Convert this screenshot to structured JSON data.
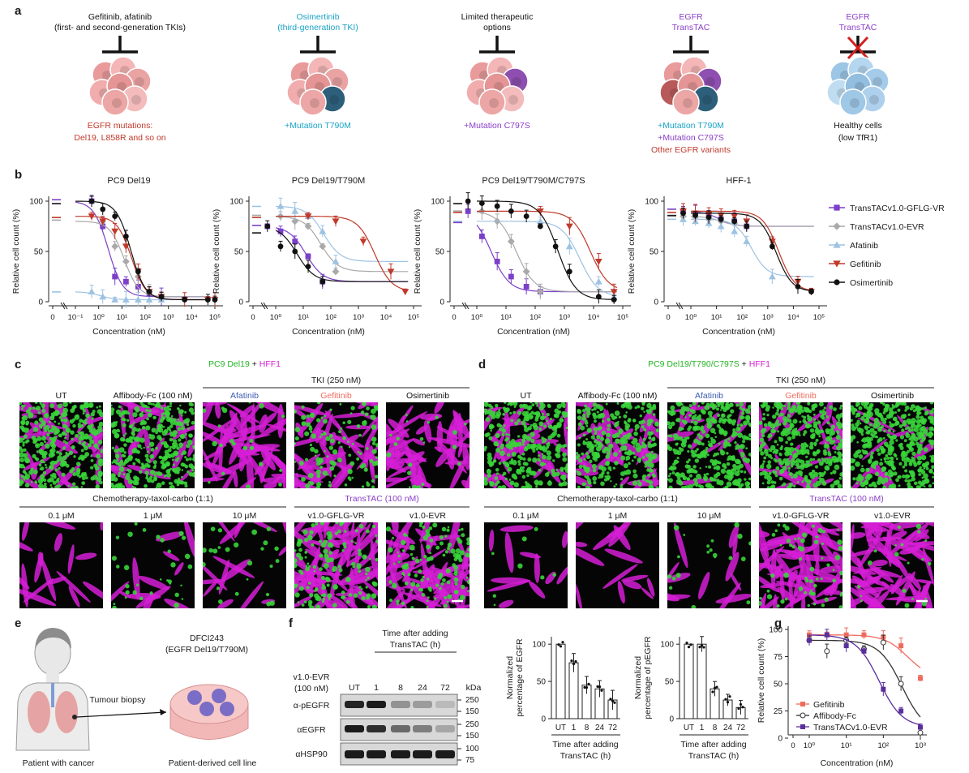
{
  "colors": {
    "purple": "#7b3fc8",
    "grey": "#a9a9a9",
    "lightblue": "#9ec3e2",
    "red": "#c0392b",
    "black": "#111111",
    "cyan": "#1aa3c6",
    "green": "#39d43a",
    "magenta": "#d61fd6",
    "salmon": "#ef6b5e"
  },
  "panel_a": {
    "label": "a",
    "columns": [
      {
        "top": [
          "Gefitinib, afatinib",
          "(first- and second-generation TKIs)"
        ],
        "top_color": "#111111",
        "bottom": [
          "EGFR mutations:",
          "Del19, L858R and so on"
        ],
        "bottom_colors": [
          "#c0392b",
          "#c0392b"
        ],
        "cell": "pink"
      },
      {
        "top": [
          "Osimertinib",
          "(third-generation TKI)"
        ],
        "top_color": "#1aa3c6",
        "bottom": [
          "+Mutation T790M"
        ],
        "bottom_colors": [
          "#1aa3c6"
        ],
        "cell": "pink-teal"
      },
      {
        "top": [
          "Limited therapeutic",
          "options"
        ],
        "top_color": "#111111",
        "bottom": [
          "+Mutation C797S"
        ],
        "bottom_colors": [
          "#8a3fc8"
        ],
        "cell": "pink-purple"
      },
      {
        "top": [
          "EGFR",
          "TransTAC"
        ],
        "top_color": "#8a3fc8",
        "bottom": [
          "+Mutation T790M",
          "+Mutation C797S",
          "Other EGFR variants"
        ],
        "bottom_colors": [
          "#1aa3c6",
          "#8a3fc8",
          "#c0392b"
        ],
        "cell": "mixed"
      },
      {
        "top": [
          "EGFR",
          "TransTAC"
        ],
        "top_color": "#8a3fc8",
        "bottom": [
          "Healthy cells",
          "(low TfR1)"
        ],
        "bottom_colors": [
          "#111111",
          "#111111"
        ],
        "cell": "blue"
      }
    ]
  },
  "panel_b": {
    "label": "b",
    "ylabel": "Relative cell count (%)",
    "xlabel": "Concentration (nM)",
    "legend": [
      "TransTACv1.0-GFLG-VR",
      "TransTACv1.0-EVR",
      "Afatinib",
      "Gefitinib",
      "Osimertinib"
    ]
  },
  "chart_data": [
    {
      "type": "scatter",
      "title": "PC9  Del19",
      "xlabel": "Concentration (nM)",
      "ylabel": "Relative cell count (%)",
      "xscale": "log",
      "xticks": [
        "0",
        "10⁻¹",
        "10⁰",
        "10¹",
        "10²",
        "10³",
        "10⁴",
        "10⁵"
      ],
      "yticks": [
        0,
        50,
        100
      ],
      "ylim": [
        0,
        100
      ],
      "series": [
        {
          "name": "TransTACv1.0-GFLG-VR",
          "x": [
            0.5,
            1.5,
            5,
            15,
            50,
            150,
            500
          ],
          "y": [
            100,
            75,
            25,
            20,
            15,
            8,
            5
          ]
        },
        {
          "name": "TransTACv1.0-EVR",
          "x": [
            1.5,
            5,
            15,
            50,
            150,
            500
          ],
          "y": [
            80,
            55,
            40,
            25,
            10,
            5
          ]
        },
        {
          "name": "Afatinib",
          "x": [
            0.5,
            1.5,
            5,
            15,
            50,
            150,
            500
          ],
          "y": [
            10,
            5,
            2,
            2,
            2,
            2,
            2
          ]
        },
        {
          "name": "Gefitinib",
          "x": [
            0.5,
            1.5,
            5,
            15,
            50,
            150,
            500,
            5000,
            50000,
            100000
          ],
          "y": [
            85,
            80,
            70,
            55,
            30,
            10,
            5,
            2,
            2,
            2
          ]
        },
        {
          "name": "Osimertinib",
          "x": [
            0.5,
            1.5,
            5,
            15,
            50,
            150,
            500,
            5000,
            50000,
            100000
          ],
          "y": [
            100,
            92,
            85,
            65,
            30,
            10,
            5,
            2,
            2,
            2
          ]
        }
      ]
    },
    {
      "type": "scatter",
      "title": "PC9 Del19/T790M",
      "xlabel": "Concentration (nM)",
      "ylabel": "Relative cell count (%)",
      "xscale": "log",
      "xticks": [
        "0",
        "10⁰",
        "10¹",
        "10²",
        "10³",
        "10⁴",
        "10⁵"
      ],
      "yticks": [
        0,
        50,
        100
      ],
      "ylim": [
        0,
        100
      ],
      "series": [
        {
          "name": "TransTACv1.0-GFLG-VR",
          "x": [
            0.5,
            1.5,
            5,
            15,
            50
          ],
          "y": [
            75,
            70,
            60,
            45,
            20
          ]
        },
        {
          "name": "TransTACv1.0-EVR",
          "x": [
            1.5,
            5,
            15,
            50,
            150
          ],
          "y": [
            85,
            80,
            75,
            55,
            30
          ]
        },
        {
          "name": "Afatinib",
          "x": [
            1.5,
            5,
            15,
            50,
            150
          ],
          "y": [
            95,
            90,
            85,
            70,
            40
          ]
        },
        {
          "name": "Gefitinib",
          "x": [
            15,
            150,
            1500,
            15000,
            50000
          ],
          "y": [
            85,
            80,
            60,
            30,
            10
          ]
        },
        {
          "name": "Osimertinib",
          "x": [
            0.5,
            1.5,
            5,
            15,
            50
          ],
          "y": [
            75,
            55,
            50,
            35,
            20
          ]
        }
      ]
    },
    {
      "type": "scatter",
      "title": "PC9 Del19/T790M/C797S",
      "xlabel": "Concentration (nM)",
      "ylabel": "Relative cell count (%)",
      "xscale": "log",
      "xticks": [
        "0",
        "10⁰",
        "10¹",
        "10²",
        "10³",
        "10⁴",
        "10⁵"
      ],
      "yticks": [
        0,
        50,
        100
      ],
      "ylim": [
        0,
        100
      ],
      "series": [
        {
          "name": "TransTACv1.0-GFLG-VR",
          "x": [
            0.5,
            1.5,
            5,
            15,
            50,
            150
          ],
          "y": [
            90,
            65,
            40,
            25,
            15,
            10
          ]
        },
        {
          "name": "TransTACv1.0-EVR",
          "x": [
            1.5,
            5,
            15,
            50,
            150
          ],
          "y": [
            90,
            80,
            60,
            30,
            10
          ]
        },
        {
          "name": "Afatinib",
          "x": [
            150,
            1500,
            15000,
            50000
          ],
          "y": [
            80,
            55,
            20,
            5
          ]
        },
        {
          "name": "Gefitinib",
          "x": [
            150,
            1500,
            15000,
            50000
          ],
          "y": [
            90,
            75,
            40,
            10
          ]
        },
        {
          "name": "Osimertinib",
          "x": [
            0.5,
            1.5,
            5,
            15,
            50,
            150,
            500,
            1500,
            15000,
            50000
          ],
          "y": [
            100,
            98,
            95,
            90,
            85,
            75,
            55,
            30,
            5,
            2
          ]
        }
      ]
    },
    {
      "type": "scatter",
      "title": "HFF-1",
      "xlabel": "Concentration (nM)",
      "ylabel": "Relative cell count (%)",
      "xscale": "log",
      "xticks": [
        "0",
        "10⁰",
        "10¹",
        "10²",
        "10³",
        "10⁴",
        "10⁵"
      ],
      "yticks": [
        0,
        50,
        100
      ],
      "ylim": [
        0,
        100
      ],
      "series": [
        {
          "name": "TransTACv1.0-GFLG-VR",
          "x": [
            0.5,
            1.5,
            5,
            15,
            50,
            150
          ],
          "y": [
            90,
            88,
            85,
            82,
            80,
            75
          ]
        },
        {
          "name": "TransTACv1.0-EVR",
          "x": [
            0.5,
            1.5,
            5,
            15,
            50,
            150
          ],
          "y": [
            85,
            84,
            82,
            80,
            78,
            75
          ]
        },
        {
          "name": "Afatinib",
          "x": [
            0.5,
            1.5,
            5,
            15,
            50,
            150,
            1500
          ],
          "y": [
            82,
            80,
            78,
            75,
            70,
            60,
            25
          ]
        },
        {
          "name": "Gefitinib",
          "x": [
            0.5,
            1.5,
            5,
            15,
            50,
            150,
            1500,
            15000,
            50000
          ],
          "y": [
            90,
            88,
            87,
            86,
            85,
            80,
            60,
            20,
            10
          ]
        },
        {
          "name": "Osimertinib",
          "x": [
            0.5,
            1.5,
            5,
            15,
            50,
            150,
            1500,
            15000,
            50000
          ],
          "y": [
            88,
            86,
            84,
            82,
            80,
            75,
            55,
            15,
            10
          ]
        }
      ]
    },
    {
      "type": "bar",
      "title": "",
      "ylabel": "Normalized percentage of EGFR",
      "xlabel": "Time after adding TransTAC (h)",
      "categories": [
        "UT",
        "1",
        "8",
        "24",
        "72"
      ],
      "values": [
        100,
        75,
        45,
        40,
        25
      ],
      "ylim": [
        0,
        110
      ],
      "yticks": [
        0,
        50,
        100
      ]
    },
    {
      "type": "bar",
      "title": "",
      "ylabel": "Normalized percentage of pEGFR",
      "xlabel": "Time after adding TransTAC (h)",
      "categories": [
        "UT",
        "1",
        "8",
        "24",
        "72"
      ],
      "values": [
        100,
        100,
        40,
        25,
        15
      ],
      "ylim": [
        0,
        110
      ],
      "yticks": [
        0,
        50,
        100
      ]
    },
    {
      "type": "scatter",
      "title": "",
      "xlabel": "Concentration (nM)",
      "ylabel": "Relative cell count (%)",
      "xscale": "log",
      "xticks": [
        "0",
        "10⁰",
        "10¹",
        "10²",
        "10³"
      ],
      "yticks": [
        0,
        25,
        50,
        75,
        100
      ],
      "ylim": [
        0,
        100
      ],
      "series": [
        {
          "name": "Gefitinib",
          "x": [
            1,
            3,
            10,
            30,
            100,
            300,
            1000
          ],
          "y": [
            95,
            95,
            95,
            95,
            93,
            85,
            55
          ]
        },
        {
          "name": "Affibody-Fc",
          "x": [
            1,
            3,
            10,
            30,
            100,
            300,
            1000
          ],
          "y": [
            90,
            80,
            90,
            82,
            88,
            50,
            5
          ]
        },
        {
          "name": "TransTACv1.0-EVR",
          "x": [
            1,
            3,
            10,
            30,
            100,
            300,
            1000
          ],
          "y": [
            90,
            95,
            85,
            80,
            45,
            25,
            10
          ]
        }
      ]
    }
  ],
  "panel_c": {
    "label": "c",
    "title_a": "PC9 Del19",
    "title_plus": " + ",
    "title_b": "HFF1",
    "tki_header": "TKI (250 nM)",
    "chemo_header": "Chemotherapy-taxol-carbo (1:1)",
    "transtac_header": "TransTAC (100 nM)",
    "row1": [
      "UT",
      "Affibody-Fc (100 nM)",
      "Afatinib",
      "Gefitinib",
      "Osimertinib"
    ],
    "row2": [
      "0.1 μM",
      "1 μM",
      "10 μM",
      "v1.0-GFLG-VR",
      "v1.0-EVR"
    ]
  },
  "panel_d": {
    "label": "d",
    "title_a": "PC9 Del19/T790/C797S",
    "title_plus": " + ",
    "title_b": "HFF1",
    "tki_header": "TKI (250 nM)",
    "chemo_header": "Chemotherapy-taxol-carbo (1:1)",
    "transtac_header": "TransTAC (100 nM)",
    "row1": [
      "UT",
      "Affibody-Fc (100 nM)",
      "Afatinib",
      "Gefitinib",
      "Osimertinib"
    ],
    "row2": [
      "0.1 μM",
      "1 μM",
      "10 μM",
      "v1.0-GFLG-VR",
      "v1.0-EVR"
    ]
  },
  "panel_e": {
    "label": "e",
    "cell_line": [
      "DFCI243",
      "(EGFR Del19/T790M)"
    ],
    "biopsy": "Tumour biopsy",
    "patient": "Patient with cancer",
    "derived": "Patient-derived cell line"
  },
  "panel_f": {
    "label": "f",
    "time_header": [
      "Time after adding",
      "TransTAC (h)"
    ],
    "treatment": [
      "v1.0-EVR",
      "(100 nM)"
    ],
    "lanes": [
      "UT",
      "1",
      "8",
      "24",
      "72"
    ],
    "kda": "kDa",
    "rows": [
      {
        "name": "α-pEGFR",
        "marks": [
          "250",
          "150"
        ]
      },
      {
        "name": "αEGFR",
        "marks": [
          "250",
          "150"
        ]
      },
      {
        "name": "αHSP90",
        "marks": [
          "100",
          "75"
        ]
      }
    ],
    "bar_xlabel": [
      "Time after adding",
      "TransTAC (h)"
    ],
    "bar1_ylabel": [
      "Normalized",
      "percentage of EGFR"
    ],
    "bar2_ylabel": [
      "Normalized",
      "percentage of pEGFR"
    ]
  },
  "panel_g": {
    "label": "g",
    "ylabel": "Relative cell count (%)",
    "xlabel": "Concentration (nM)",
    "legend": [
      "Gefitinib",
      "Affibody-Fc",
      "TransTACv1.0-EVR"
    ]
  }
}
